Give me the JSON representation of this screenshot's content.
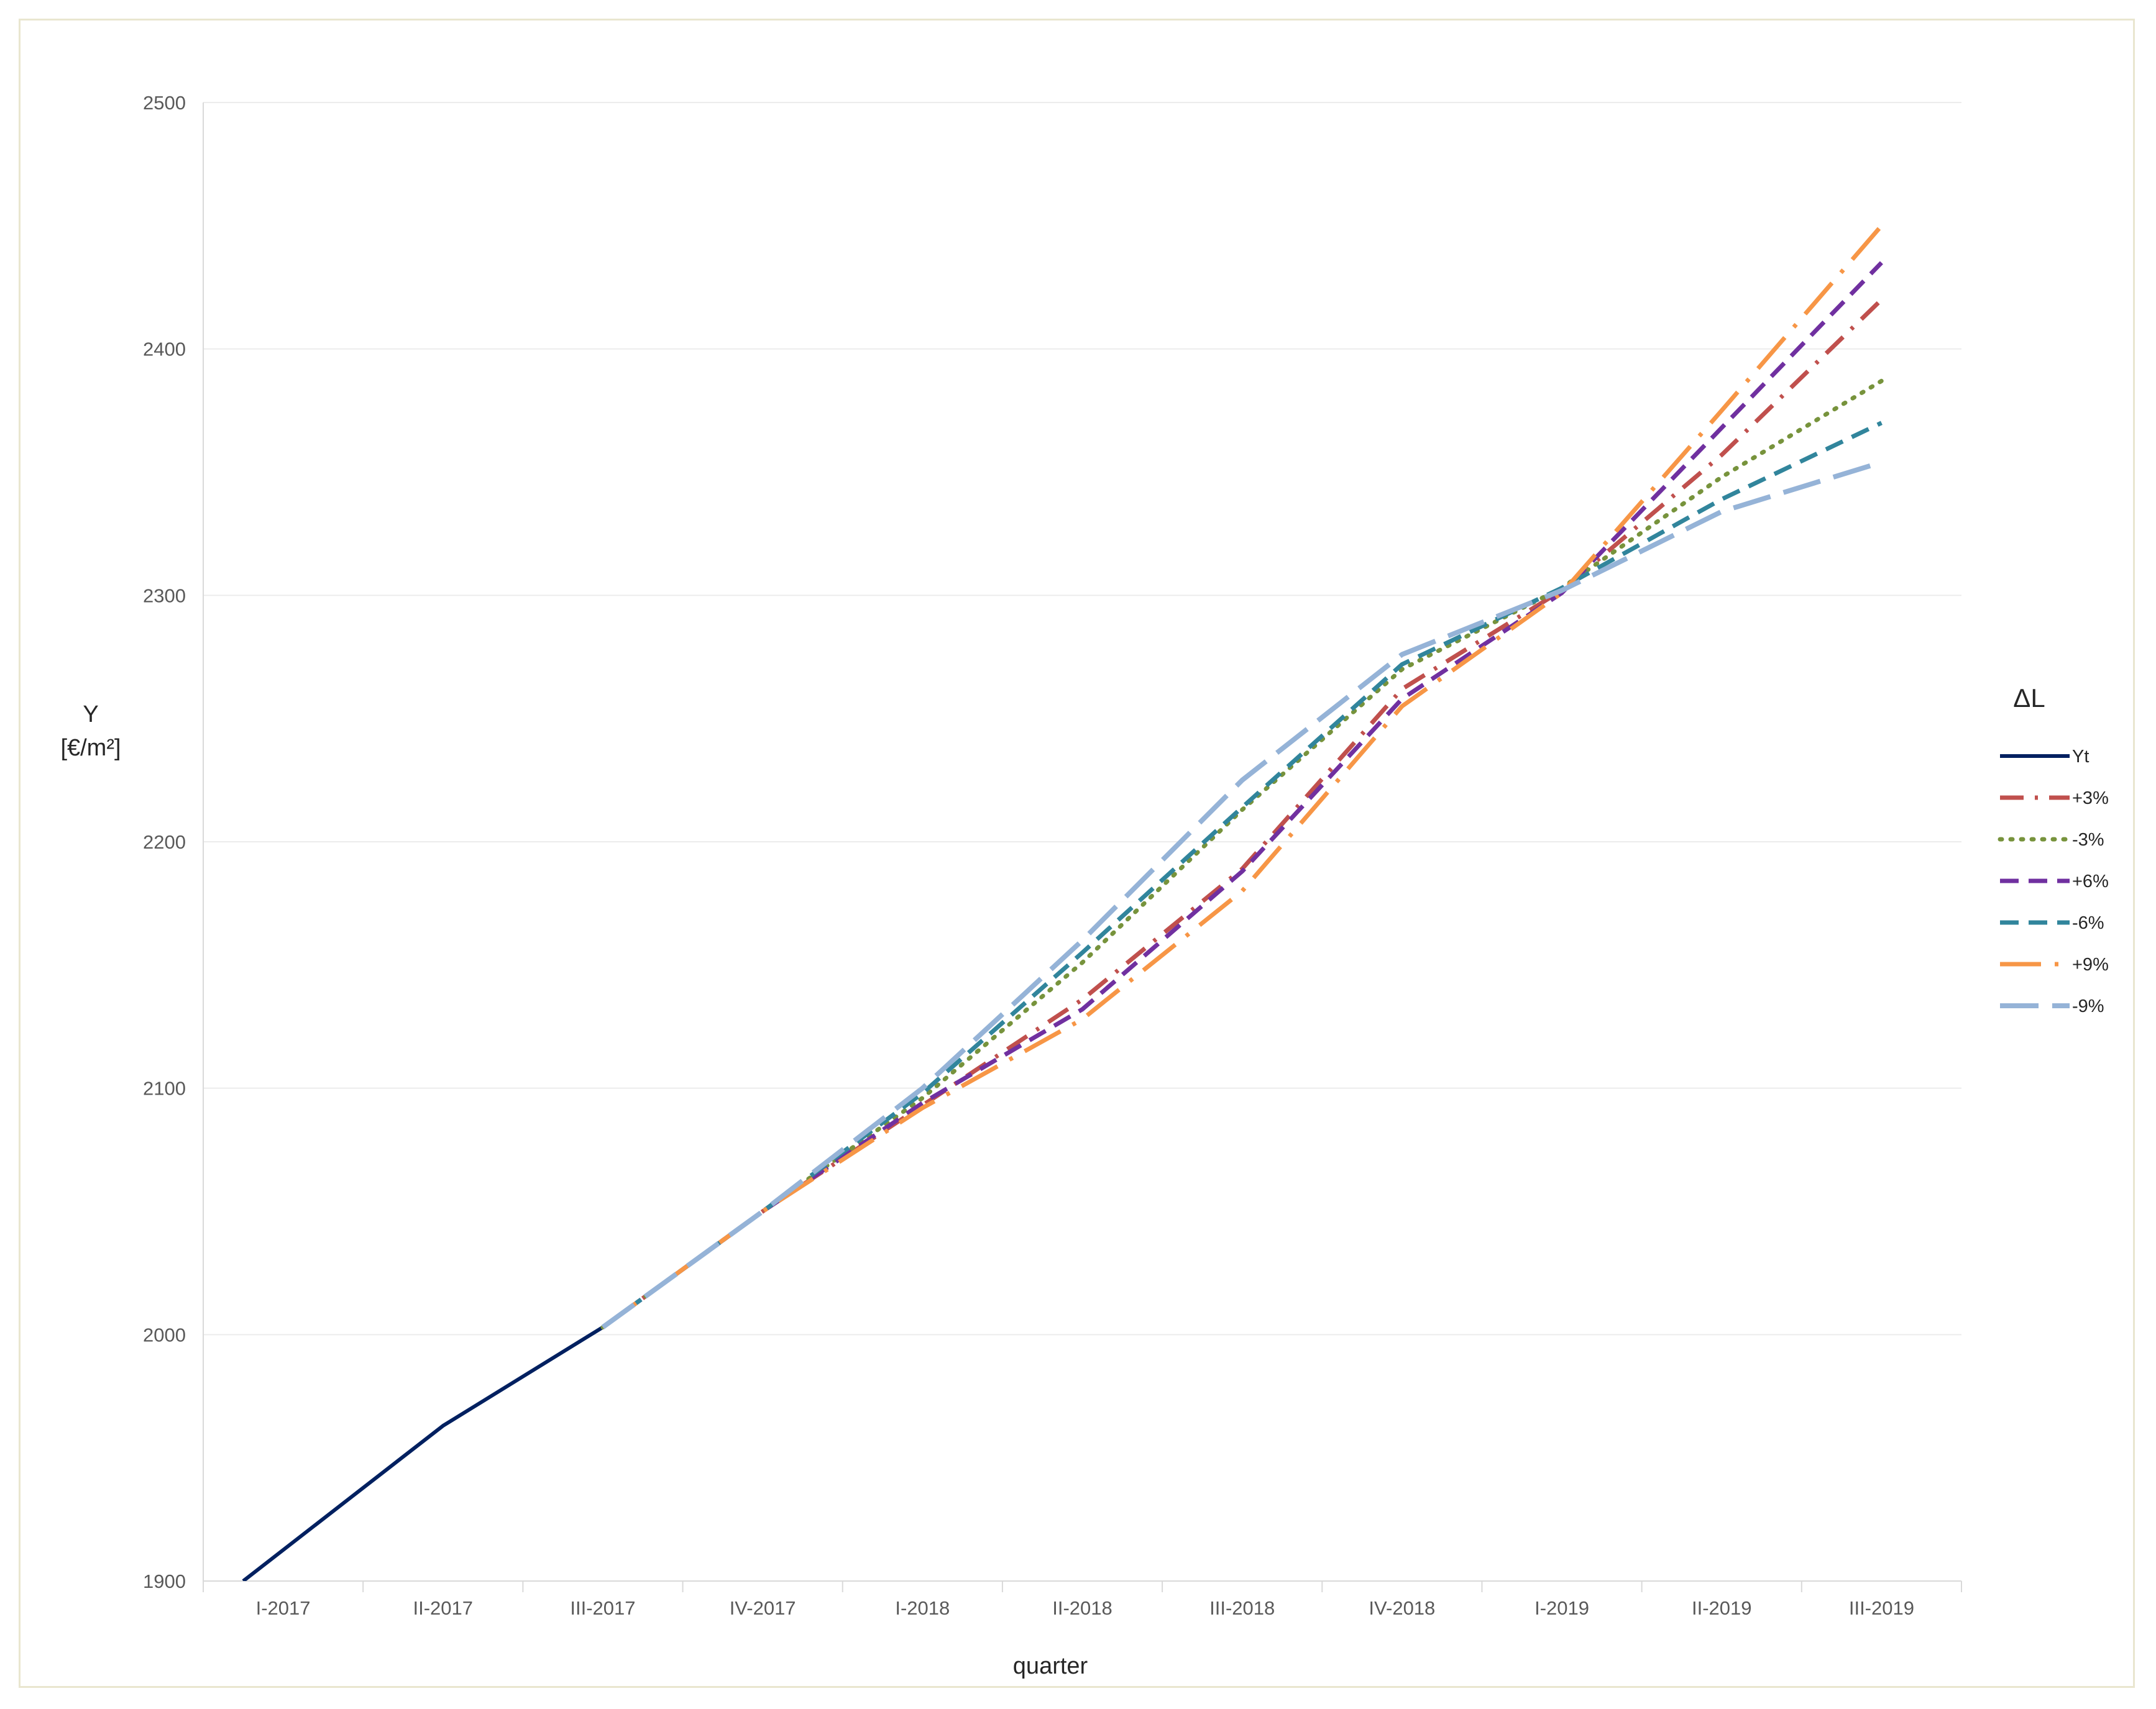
{
  "chart_data": {
    "type": "line",
    "categories": [
      "I-2017",
      "II-2017",
      "III-2017",
      "IV-2017",
      "I-2018",
      "II-2018",
      "III-2018",
      "IV-2018",
      "I-2019",
      "II-2019",
      "III-2019"
    ],
    "ylabel_line1": "Y",
    "ylabel_line2": "[€/m²]",
    "xlabel": "quarter",
    "ylim": [
      1900,
      2500
    ],
    "yticks": [
      1900,
      2000,
      2100,
      2200,
      2300,
      2400,
      2500
    ],
    "legend_title": "ΔL",
    "legend_position": "right",
    "grid": true,
    "x_start_offset": -0.25,
    "series": [
      {
        "name": "Yt",
        "color": "#002060",
        "dash": "solid",
        "values": [
          1855,
          1963,
          2003,
          null,
          null,
          null,
          null,
          null,
          null,
          null,
          null
        ],
        "first_value_at_start": 1900
      },
      {
        "name": "+3%",
        "color": "#c0504d",
        "dash": "dashdot",
        "values": [
          null,
          null,
          2003,
          2050,
          2093,
          2136,
          2189,
          2262,
          2302,
          2357,
          2420
        ]
      },
      {
        "name": "-3%",
        "color": "#77933c",
        "dash": "dot",
        "values": [
          null,
          null,
          2003,
          2050,
          2096,
          2151,
          2213,
          2270,
          2303,
          2348,
          2387
        ]
      },
      {
        "name": "+6%",
        "color": "#7030a0",
        "dash": "dash",
        "values": [
          null,
          null,
          2003,
          2050,
          2094,
          2132,
          2188,
          2258,
          2301,
          2368,
          2435
        ]
      },
      {
        "name": "-6%",
        "color": "#31859c",
        "dash": "dash",
        "values": [
          null,
          null,
          2003,
          2050,
          2098,
          2155,
          2214,
          2272,
          2303,
          2339,
          2370
        ]
      },
      {
        "name": "+9%",
        "color": "#f79646",
        "dash": "longdashdot",
        "values": [
          null,
          null,
          2003,
          2050,
          2092,
          2128,
          2180,
          2255,
          2301,
          2375,
          2450
        ]
      },
      {
        "name": "-9%",
        "color": "#95b3d7",
        "dash": "longdash",
        "values": [
          null,
          null,
          2003,
          2050,
          2100,
          2160,
          2225,
          2276,
          2302,
          2334,
          2354
        ]
      }
    ]
  }
}
